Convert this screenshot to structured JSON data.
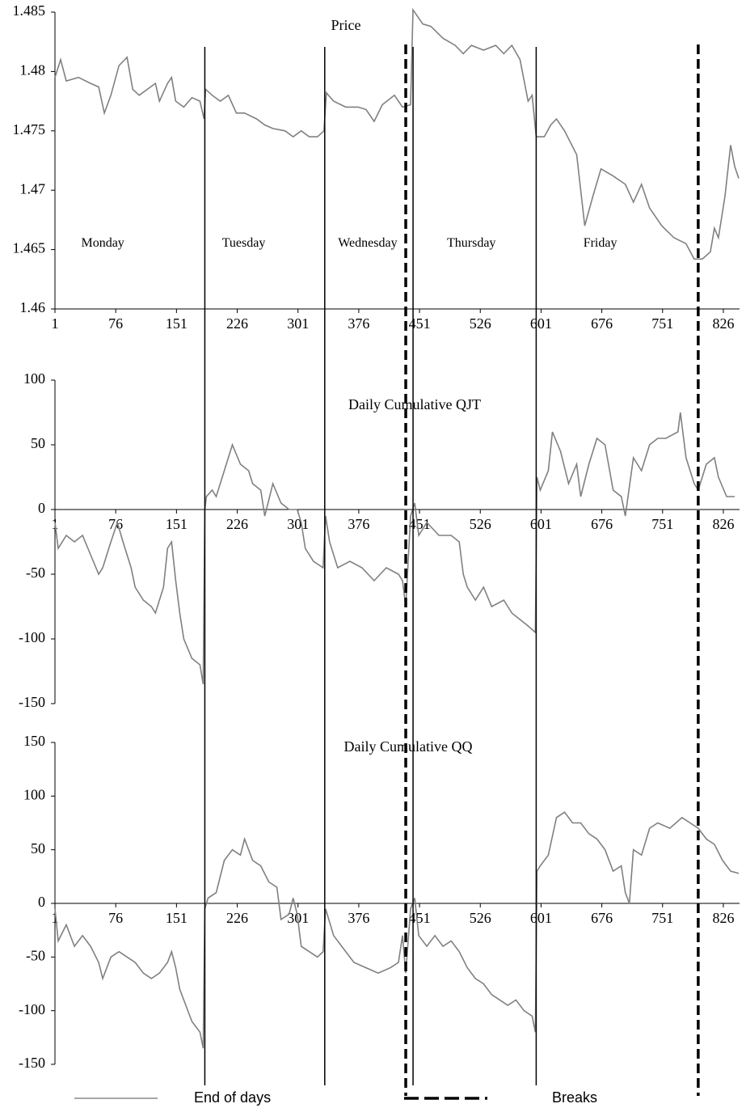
{
  "chart_data": [
    {
      "type": "line",
      "title": "Price",
      "xlim": [
        1,
        846
      ],
      "xticks": [
        1,
        76,
        151,
        226,
        301,
        376,
        451,
        526,
        601,
        676,
        751,
        826
      ],
      "ylim": [
        1.46,
        1.485
      ],
      "yticks": [
        1.46,
        1.465,
        1.47,
        1.475,
        1.48,
        1.485
      ],
      "color": "#808080",
      "day_labels": [
        {
          "text": "Monday",
          "x": 60,
          "y": 1.4655
        },
        {
          "text": "Tuesday",
          "x": 234,
          "y": 1.4655
        },
        {
          "text": "Wednesday",
          "x": 387,
          "y": 1.4655
        },
        {
          "text": "Thursday",
          "x": 515,
          "y": 1.4655
        },
        {
          "text": "Friday",
          "x": 674,
          "y": 1.4655
        }
      ],
      "x": [
        1,
        8,
        15,
        30,
        45,
        55,
        62,
        70,
        80,
        90,
        97,
        105,
        115,
        125,
        130,
        140,
        145,
        150,
        160,
        170,
        180,
        185,
        187,
        195,
        205,
        215,
        225,
        235,
        250,
        260,
        270,
        285,
        295,
        305,
        315,
        325,
        333,
        336,
        345,
        360,
        375,
        385,
        395,
        405,
        420,
        430,
        440,
        443,
        455,
        465,
        480,
        495,
        505,
        515,
        530,
        545,
        555,
        565,
        575,
        585,
        590,
        595,
        605,
        613,
        620,
        630,
        645,
        655,
        665,
        675,
        690,
        705,
        715,
        725,
        735,
        750,
        765,
        780,
        790,
        800,
        810,
        815,
        820,
        828,
        835,
        840,
        845
      ],
      "values": [
        1.4795,
        1.481,
        1.4792,
        1.4795,
        1.479,
        1.4787,
        1.4765,
        1.478,
        1.4805,
        1.4812,
        1.4785,
        1.478,
        1.4785,
        1.479,
        1.4775,
        1.479,
        1.4795,
        1.4775,
        1.477,
        1.4778,
        1.4775,
        1.476,
        1.4785,
        1.478,
        1.4775,
        1.478,
        1.4765,
        1.4765,
        1.476,
        1.4755,
        1.4752,
        1.475,
        1.4745,
        1.475,
        1.4745,
        1.4745,
        1.475,
        1.4782,
        1.4775,
        1.477,
        1.477,
        1.4768,
        1.4758,
        1.4772,
        1.478,
        1.477,
        1.4772,
        1.4852,
        1.484,
        1.4838,
        1.4828,
        1.4822,
        1.4815,
        1.4822,
        1.4818,
        1.4822,
        1.4815,
        1.4822,
        1.481,
        1.4775,
        1.478,
        1.4745,
        1.4745,
        1.4755,
        1.476,
        1.475,
        1.473,
        1.467,
        1.4695,
        1.4718,
        1.4712,
        1.4705,
        1.469,
        1.4705,
        1.4685,
        1.467,
        1.466,
        1.4655,
        1.4642,
        1.4642,
        1.4648,
        1.4668,
        1.466,
        1.4695,
        1.4738,
        1.472,
        1.471
      ]
    },
    {
      "type": "line",
      "title": "Daily Cumulative QJT",
      "xlim": [
        1,
        846
      ],
      "xticks": [
        1,
        76,
        151,
        226,
        301,
        376,
        451,
        526,
        601,
        676,
        751,
        826
      ],
      "ylim": [
        -150,
        100
      ],
      "yticks": [
        -150,
        -100,
        -50,
        0,
        50,
        100
      ],
      "color": "#808080",
      "x": [
        1,
        5,
        15,
        25,
        35,
        45,
        55,
        60,
        70,
        78,
        85,
        95,
        100,
        110,
        120,
        125,
        135,
        140,
        145,
        150,
        155,
        160,
        170,
        180,
        184,
        186,
        188,
        195,
        200,
        210,
        220,
        230,
        240,
        245,
        255,
        260,
        270,
        280,
        290,
        300,
        305,
        310,
        320,
        332,
        335,
        340,
        350,
        365,
        380,
        395,
        410,
        425,
        430,
        434,
        440,
        445,
        450,
        460,
        475,
        490,
        500,
        505,
        510,
        520,
        530,
        540,
        555,
        565,
        575,
        585,
        594,
        596,
        600,
        610,
        615,
        625,
        635,
        645,
        650,
        660,
        670,
        680,
        690,
        700,
        705,
        715,
        725,
        735,
        745,
        755,
        770,
        773,
        780,
        790,
        795,
        805,
        815,
        820,
        830,
        840
      ],
      "values": [
        -10,
        -30,
        -20,
        -25,
        -20,
        -35,
        -50,
        -45,
        -25,
        -10,
        -25,
        -45,
        -60,
        -70,
        -75,
        -80,
        -60,
        -30,
        -25,
        -55,
        -80,
        -100,
        -115,
        -120,
        -135,
        0,
        10,
        15,
        10,
        30,
        50,
        35,
        30,
        20,
        15,
        -5,
        20,
        5,
        0,
        0,
        -10,
        -30,
        -40,
        -45,
        -5,
        -25,
        -45,
        -40,
        -45,
        -55,
        -45,
        -50,
        -55,
        -75,
        -5,
        5,
        -20,
        -10,
        -20,
        -20,
        -25,
        -50,
        -60,
        -70,
        -60,
        -75,
        -70,
        -80,
        -85,
        -90,
        -95,
        25,
        15,
        30,
        60,
        45,
        20,
        35,
        10,
        35,
        55,
        50,
        15,
        10,
        -5,
        40,
        30,
        50,
        55,
        55,
        60,
        75,
        40,
        20,
        15,
        35,
        40,
        25,
        10,
        10
      ]
    },
    {
      "type": "line",
      "title": "Daily Cumulative QQ",
      "xlim": [
        1,
        846
      ],
      "xticks": [
        1,
        76,
        151,
        226,
        301,
        376,
        451,
        526,
        601,
        676,
        751,
        826
      ],
      "ylim": [
        -150,
        150
      ],
      "yticks": [
        -150,
        -100,
        -50,
        0,
        50,
        100,
        150
      ],
      "color": "#808080",
      "x": [
        1,
        5,
        15,
        25,
        35,
        45,
        55,
        60,
        70,
        80,
        90,
        100,
        110,
        120,
        130,
        140,
        145,
        150,
        155,
        160,
        170,
        180,
        184,
        186,
        190,
        200,
        210,
        220,
        230,
        235,
        245,
        255,
        265,
        275,
        280,
        290,
        295,
        300,
        305,
        315,
        325,
        332,
        335,
        345,
        355,
        370,
        385,
        400,
        415,
        425,
        430,
        434,
        440,
        445,
        450,
        460,
        470,
        480,
        490,
        500,
        510,
        520,
        530,
        540,
        550,
        560,
        570,
        580,
        590,
        594,
        596,
        600,
        610,
        620,
        630,
        640,
        650,
        660,
        670,
        680,
        690,
        700,
        705,
        710,
        715,
        725,
        735,
        745,
        760,
        775,
        785,
        795,
        805,
        815,
        825,
        835,
        845
      ],
      "values": [
        -5,
        -35,
        -20,
        -40,
        -30,
        -40,
        -55,
        -70,
        -50,
        -45,
        -50,
        -55,
        -65,
        -70,
        -65,
        -55,
        -45,
        -60,
        -80,
        -90,
        -110,
        -120,
        -135,
        -5,
        5,
        10,
        40,
        50,
        45,
        60,
        40,
        35,
        20,
        15,
        -15,
        -10,
        5,
        -10,
        -40,
        -45,
        -50,
        -45,
        -5,
        -30,
        -40,
        -55,
        -60,
        -65,
        -60,
        -55,
        -30,
        -65,
        -5,
        5,
        -30,
        -40,
        -30,
        -40,
        -35,
        -45,
        -60,
        -70,
        -75,
        -85,
        -90,
        -95,
        -90,
        -100,
        -105,
        -120,
        30,
        35,
        45,
        80,
        85,
        75,
        75,
        65,
        60,
        50,
        30,
        35,
        10,
        0,
        50,
        45,
        70,
        75,
        70,
        80,
        75,
        70,
        60,
        55,
        40,
        30,
        28
      ]
    }
  ],
  "reference_lines": [
    {
      "name": "End of days",
      "color": "#000000",
      "dashed": false,
      "x": [
        186,
        334,
        443,
        595
      ]
    },
    {
      "name": "Breaks",
      "color": "#000000",
      "dashed": true,
      "x": [
        434,
        795
      ]
    }
  ]
}
